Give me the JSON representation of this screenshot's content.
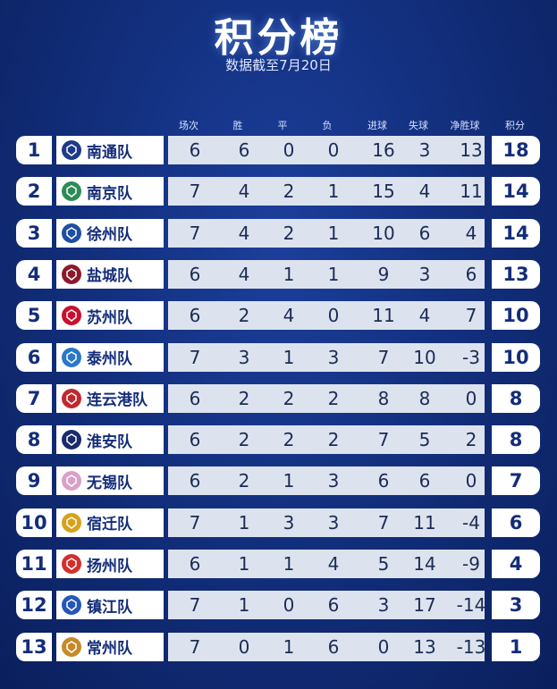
{
  "title": "积分榜",
  "subtitle": "数据截至7月20日",
  "headers": {
    "played": "场次",
    "won": "胜",
    "drawn": "平",
    "lost": "负",
    "gf": "进球",
    "ga": "失球",
    "gd": "净胜球",
    "pts": "积分"
  },
  "teams": [
    {
      "rank": "1",
      "name": "南通队",
      "played": "6",
      "won": "6",
      "drawn": "0",
      "lost": "0",
      "gf": "16",
      "ga": "3",
      "gd": "13",
      "pts": "18",
      "logo_color": "#1e3a8a"
    },
    {
      "rank": "2",
      "name": "南京队",
      "played": "7",
      "won": "4",
      "drawn": "2",
      "lost": "1",
      "gf": "15",
      "ga": "4",
      "gd": "11",
      "pts": "14",
      "logo_color": "#2e8b57"
    },
    {
      "rank": "3",
      "name": "徐州队",
      "played": "7",
      "won": "4",
      "drawn": "2",
      "lost": "1",
      "gf": "10",
      "ga": "6",
      "gd": "4",
      "pts": "14",
      "logo_color": "#1e4fa0"
    },
    {
      "rank": "4",
      "name": "盐城队",
      "played": "6",
      "won": "4",
      "drawn": "1",
      "lost": "1",
      "gf": "9",
      "ga": "3",
      "gd": "6",
      "pts": "13",
      "logo_color": "#8b1a2b"
    },
    {
      "rank": "5",
      "name": "苏州队",
      "played": "6",
      "won": "2",
      "drawn": "4",
      "lost": "0",
      "gf": "11",
      "ga": "4",
      "gd": "7",
      "pts": "10",
      "logo_color": "#c8102e"
    },
    {
      "rank": "6",
      "name": "泰州队",
      "played": "7",
      "won": "3",
      "drawn": "1",
      "lost": "3",
      "gf": "7",
      "ga": "10",
      "gd": "-3",
      "pts": "10",
      "logo_color": "#2a78c8"
    },
    {
      "rank": "7",
      "name": "连云港队",
      "played": "6",
      "won": "2",
      "drawn": "2",
      "lost": "2",
      "gf": "8",
      "ga": "8",
      "gd": "0",
      "pts": "8",
      "logo_color": "#c0282d"
    },
    {
      "rank": "8",
      "name": "淮安队",
      "played": "6",
      "won": "2",
      "drawn": "2",
      "lost": "2",
      "gf": "7",
      "ga": "5",
      "gd": "2",
      "pts": "8",
      "logo_color": "#1b2a6b"
    },
    {
      "rank": "9",
      "name": "无锡队",
      "played": "6",
      "won": "2",
      "drawn": "1",
      "lost": "3",
      "gf": "6",
      "ga": "6",
      "gd": "0",
      "pts": "7",
      "logo_color": "#d9a0c8"
    },
    {
      "rank": "10",
      "name": "宿迁队",
      "played": "7",
      "won": "1",
      "drawn": "3",
      "lost": "3",
      "gf": "7",
      "ga": "11",
      "gd": "-4",
      "pts": "6",
      "logo_color": "#d6a21e"
    },
    {
      "rank": "11",
      "name": "扬州队",
      "played": "6",
      "won": "1",
      "drawn": "1",
      "lost": "4",
      "gf": "5",
      "ga": "14",
      "gd": "-9",
      "pts": "4",
      "logo_color": "#d2302c"
    },
    {
      "rank": "12",
      "name": "镇江队",
      "played": "7",
      "won": "1",
      "drawn": "0",
      "lost": "6",
      "gf": "3",
      "ga": "17",
      "gd": "-14",
      "pts": "3",
      "logo_color": "#2656b8"
    },
    {
      "rank": "13",
      "name": "常州队",
      "played": "7",
      "won": "0",
      "drawn": "1",
      "lost": "6",
      "gf": "0",
      "ga": "13",
      "gd": "-13",
      "pts": "1",
      "logo_color": "#c58a2a"
    }
  ]
}
